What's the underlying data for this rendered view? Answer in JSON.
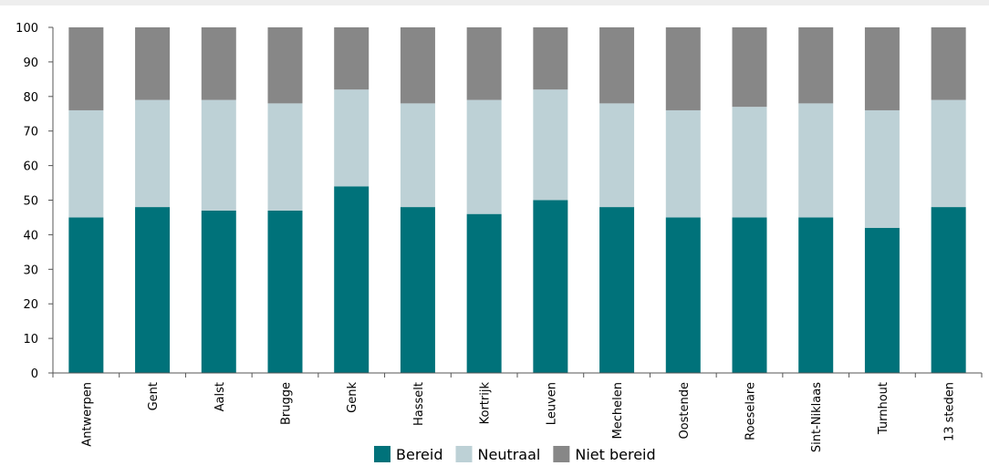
{
  "chart_data": {
    "type": "bar",
    "stacked": true,
    "categories": [
      "Antwerpen",
      "Gent",
      "Aalst",
      "Brugge",
      "Genk",
      "Hasselt",
      "Kortrijk",
      "Leuven",
      "Mechelen",
      "Oostende",
      "Roeselare",
      "Sint-Niklaas",
      "Turnhout",
      "13 steden"
    ],
    "series": [
      {
        "name": "Bereid",
        "color": "#00727a",
        "values": [
          45,
          48,
          47,
          47,
          54,
          48,
          46,
          50,
          48,
          45,
          45,
          45,
          42,
          48
        ]
      },
      {
        "name": "Neutraal",
        "color": "#bdd1d6",
        "values": [
          31,
          31,
          32,
          31,
          28,
          30,
          33,
          32,
          30,
          31,
          32,
          33,
          34,
          31
        ]
      },
      {
        "name": "Niet bereid",
        "color": "#878787",
        "values": [
          24,
          21,
          21,
          22,
          18,
          22,
          21,
          18,
          22,
          24,
          23,
          22,
          24,
          21
        ]
      }
    ],
    "ylim": [
      0,
      100
    ],
    "yticks": [
      "0",
      "10",
      "20",
      "30",
      "40",
      "50",
      "60",
      "70",
      "80",
      "90",
      "100"
    ],
    "grid": false,
    "legend_position": "bottom"
  }
}
